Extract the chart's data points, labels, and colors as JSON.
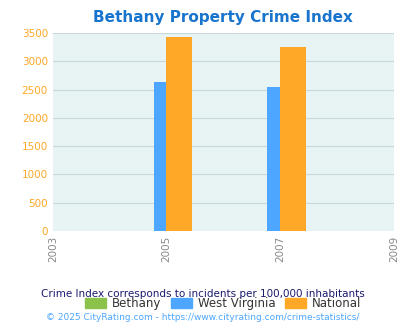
{
  "title": "Bethany Property Crime Index",
  "title_color": "#1874CD",
  "years": [
    2003,
    2005,
    2007,
    2009
  ],
  "bar_years": [
    2005,
    2007
  ],
  "bethany": [
    0,
    0
  ],
  "west_virginia": [
    2630,
    2540
  ],
  "national": [
    3430,
    3250
  ],
  "bethany_color": "#8BC34A",
  "wv_color": "#4DA6FF",
  "national_color": "#FFA726",
  "bg_color": "#E8F4F4",
  "ylim": [
    0,
    3500
  ],
  "yticks": [
    0,
    500,
    1000,
    1500,
    2000,
    2500,
    3000,
    3500
  ],
  "legend_labels": [
    "Bethany",
    "West Virginia",
    "National"
  ],
  "note": "Crime Index corresponds to incidents per 100,000 inhabitants",
  "copyright": "© 2025 CityRating.com - https://www.cityrating.com/crime-statistics/",
  "bar_width": 0.45,
  "grid_color": "#C8D8D8",
  "ytick_color": "#FFA726",
  "xtick_color": "#888888",
  "note_color": "#1a1a6e",
  "copyright_color": "#4DA6FF"
}
